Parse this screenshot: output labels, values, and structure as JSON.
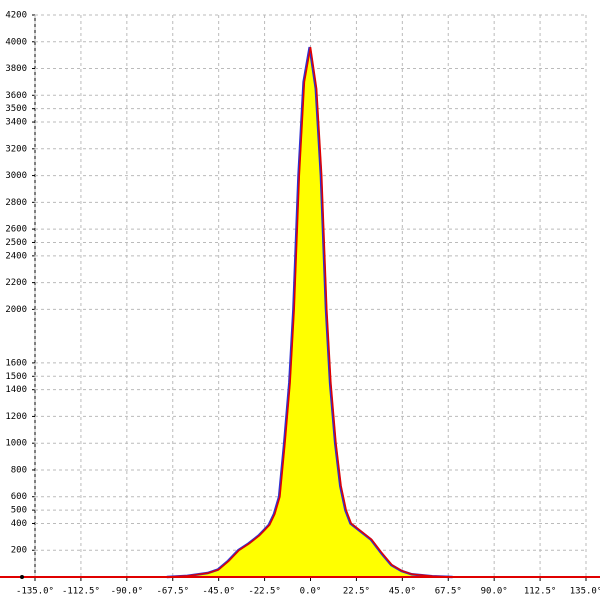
{
  "chart_data": {
    "type": "area",
    "x": [
      -70,
      -60,
      -50,
      -45,
      -40,
      -35,
      -30,
      -25,
      -22.5,
      -20,
      -17.5,
      -15,
      -12.5,
      -10,
      -8,
      -5.5,
      -3,
      0,
      3,
      5.5,
      8,
      10,
      12.5,
      15,
      17.5,
      20,
      22.5,
      25,
      30,
      35,
      40,
      45,
      50,
      60,
      70
    ],
    "series": [
      {
        "color": "#e00000",
        "fill": "#ffff00",
        "values": [
          0,
          8,
          30,
          55,
          120,
          200,
          250,
          310,
          350,
          390,
          470,
          600,
          1000,
          1450,
          2000,
          3000,
          3700,
          3960,
          3650,
          3000,
          2000,
          1450,
          1000,
          680,
          500,
          400,
          370,
          340,
          280,
          180,
          90,
          45,
          20,
          5,
          0
        ]
      }
    ],
    "xlim": [
      -135,
      135
    ],
    "xticks": [
      {
        "value": -135,
        "label": "-135.0°"
      },
      {
        "value": -112.5,
        "label": "-112.5°"
      },
      {
        "value": -90,
        "label": "-90.0°"
      },
      {
        "value": -67.5,
        "label": "-67.5°"
      },
      {
        "value": -45,
        "label": "-45.0°"
      },
      {
        "value": -22.5,
        "label": "-22.5°"
      },
      {
        "value": 0,
        "label": "0.0°"
      },
      {
        "value": 22.5,
        "label": "22.5°"
      },
      {
        "value": 45,
        "label": "45.0°"
      },
      {
        "value": 67.5,
        "label": "67.5°"
      },
      {
        "value": 90,
        "label": "90.0°"
      },
      {
        "value": 112.5,
        "label": "112.5°"
      },
      {
        "value": 135,
        "label": "135.0°"
      }
    ],
    "ylim": [
      0,
      4200
    ],
    "yticks": [
      200,
      400,
      500,
      600,
      800,
      1000,
      1200,
      1400,
      1500,
      1600,
      2000,
      2200,
      2400,
      2500,
      2600,
      2800,
      3000,
      3200,
      3400,
      3500,
      3600,
      3800,
      4000,
      4200
    ],
    "grid": true
  }
}
